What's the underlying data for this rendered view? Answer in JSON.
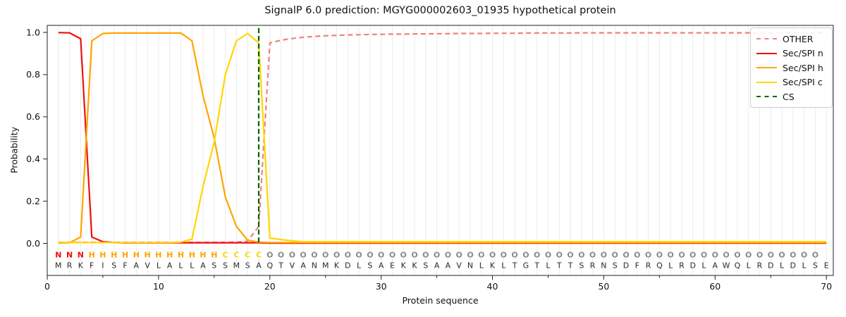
{
  "title": "SignalP 6.0 prediction: MGYG000002603_01935 hypothetical protein",
  "axes": {
    "x_label": "Protein sequence",
    "y_label": "Probability",
    "x_ticks": [
      0,
      10,
      20,
      30,
      40,
      50,
      60,
      70
    ],
    "x_minor_ticks": [
      5,
      15,
      25,
      35,
      45,
      55,
      65
    ],
    "y_ticks": [
      "0.0",
      "0.2",
      "0.4",
      "0.6",
      "0.8",
      "1.0"
    ]
  },
  "legend": {
    "items": [
      {
        "label": "OTHER",
        "color": "#f08080",
        "style": "dashed"
      },
      {
        "label": "Sec/SPI n",
        "color": "#ee1111",
        "style": "solid"
      },
      {
        "label": "Sec/SPI h",
        "color": "#ffa500",
        "style": "solid"
      },
      {
        "label": "Sec/SPI c",
        "color": "#ffd700",
        "style": "solid"
      },
      {
        "label": "CS",
        "color": "#006400",
        "style": "dashed"
      }
    ]
  },
  "chart_data": {
    "type": "line",
    "title": "SignalP 6.0 prediction: MGYG000002603_01935 hypothetical protein",
    "xlabel": "Protein sequence",
    "ylabel": "Probability",
    "x_description": "residue positions 1-70",
    "xlim": [
      0,
      70.6
    ],
    "ylim": [
      -0.15,
      1.03
    ],
    "grid": "vertical light-gray line at every residue position",
    "legend_position": "upper right",
    "series": [
      {
        "name": "OTHER",
        "color": "#f08080",
        "style": "dashed",
        "values": [
          0.005,
          0.005,
          0.005,
          0.005,
          0.005,
          0.005,
          0.005,
          0.005,
          0.005,
          0.005,
          0.005,
          0.005,
          0.005,
          0.005,
          0.005,
          0.005,
          0.006,
          0.01,
          0.08,
          0.95,
          0.963,
          0.971,
          0.977,
          0.981,
          0.984,
          0.986,
          0.988,
          0.989,
          0.99,
          0.991,
          0.992,
          0.992,
          0.993,
          0.993,
          0.994,
          0.994,
          0.995,
          0.995,
          0.995,
          0.996,
          0.996,
          0.996,
          0.997,
          0.997,
          0.997,
          0.997,
          0.997,
          0.998,
          0.998,
          0.998,
          0.998,
          0.998,
          0.998,
          0.998,
          0.998,
          0.998,
          0.998,
          0.998,
          0.998,
          0.998,
          0.998,
          0.998,
          0.998,
          0.998,
          0.998,
          0.998,
          0.998,
          0.998,
          0.998,
          0.998
        ]
      },
      {
        "name": "Sec/SPI n",
        "color": "#ee1111",
        "style": "solid",
        "values": [
          0.999,
          0.998,
          0.97,
          0.03,
          0.008,
          0.004,
          0.003,
          0.003,
          0.003,
          0.003,
          0.003,
          0.003,
          0.003,
          0.003,
          0.003,
          0.003,
          0.003,
          0.003,
          0.003,
          0.001,
          0.001,
          0.001,
          0.001,
          0.001,
          0.001,
          0.001,
          0.001,
          0.001,
          0.001,
          0.001,
          0.001,
          0.001,
          0.001,
          0.001,
          0.001,
          0.001,
          0.001,
          0.001,
          0.001,
          0.001,
          0.001,
          0.001,
          0.001,
          0.001,
          0.001,
          0.001,
          0.001,
          0.001,
          0.001,
          0.001,
          0.001,
          0.001,
          0.001,
          0.001,
          0.001,
          0.001,
          0.001,
          0.001,
          0.001,
          0.001,
          0.001,
          0.001,
          0.001,
          0.001,
          0.001,
          0.001,
          0.001,
          0.001,
          0.001,
          0.001
        ]
      },
      {
        "name": "Sec/SPI h",
        "color": "#ffa500",
        "style": "solid",
        "values": [
          0.001,
          0.003,
          0.03,
          0.96,
          0.995,
          0.997,
          0.997,
          0.997,
          0.997,
          0.997,
          0.997,
          0.997,
          0.96,
          0.7,
          0.5,
          0.22,
          0.08,
          0.015,
          0.006,
          0.004,
          0.004,
          0.004,
          0.004,
          0.004,
          0.004,
          0.004,
          0.004,
          0.004,
          0.004,
          0.004,
          0.004,
          0.004,
          0.004,
          0.004,
          0.004,
          0.004,
          0.004,
          0.004,
          0.004,
          0.004,
          0.004,
          0.004,
          0.004,
          0.004,
          0.004,
          0.004,
          0.004,
          0.004,
          0.004,
          0.004,
          0.004,
          0.004,
          0.004,
          0.004,
          0.004,
          0.004,
          0.004,
          0.004,
          0.004,
          0.004,
          0.004,
          0.004,
          0.004,
          0.004,
          0.004,
          0.004,
          0.004,
          0.004,
          0.004,
          0.004
        ]
      },
      {
        "name": "Sec/SPI c",
        "color": "#ffd700",
        "style": "solid",
        "values": [
          0.004,
          0.004,
          0.004,
          0.004,
          0.004,
          0.004,
          0.004,
          0.004,
          0.004,
          0.004,
          0.004,
          0.006,
          0.02,
          0.27,
          0.48,
          0.8,
          0.96,
          0.995,
          0.95,
          0.025,
          0.018,
          0.012,
          0.008,
          0.008,
          0.008,
          0.008,
          0.008,
          0.008,
          0.008,
          0.008,
          0.008,
          0.008,
          0.008,
          0.008,
          0.008,
          0.008,
          0.008,
          0.008,
          0.008,
          0.008,
          0.008,
          0.008,
          0.008,
          0.008,
          0.008,
          0.008,
          0.008,
          0.008,
          0.008,
          0.008,
          0.008,
          0.008,
          0.008,
          0.008,
          0.008,
          0.008,
          0.008,
          0.008,
          0.008,
          0.008,
          0.008,
          0.008,
          0.008,
          0.008,
          0.008,
          0.008,
          0.008,
          0.008,
          0.008,
          0.008
        ]
      }
    ],
    "cs_marker": {
      "name": "CS",
      "position": 19,
      "color": "#006400",
      "style": "dashed"
    },
    "sequence": "MRKFISFAVLALLASSMSAQTVANMKDLSAEKKSAAVNLKLTGTLTTSRNSDFRQLRDLAWQLRDLDLSE",
    "regions": "NNNHHHHHHHHHHHHCCCCOOOOOOOOOOOOOOOOOOOOOOOOOOOOOOOOOOOOOOOOOOOOOOOOOO",
    "region_colors": {
      "N": "#ee1111",
      "H": "#ffa500",
      "C": "#ffd700",
      "O": "#8a8a8a"
    },
    "sequence_color": "#2b2b2b"
  }
}
